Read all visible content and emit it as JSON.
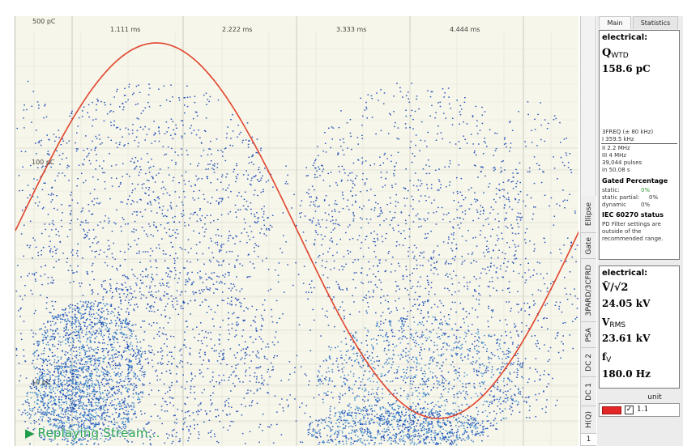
{
  "plot": {
    "scale_top": "500 pC",
    "scale_mid": "100 pC",
    "scale_low": "10 pC",
    "time_ticks": [
      "1.111 ms",
      "2.222 ms",
      "3.333 ms",
      "4.444 ms"
    ],
    "sine_color": "#e0442c",
    "dot_color": "#2451b8",
    "dot_dense_color": "#3f8fd0",
    "replay_text": "Replaying Stream...",
    "replay_icon": "play-triangle-icon"
  },
  "side_tabs": [
    "Ellipse",
    "Gate",
    "3PARD/3CFRD",
    "PSA",
    "DC 2",
    "DC 1",
    "H(Q)",
    "1"
  ],
  "top_tabs": {
    "main": "Main",
    "statistics": "Statistics"
  },
  "electrical1": {
    "header": "electrical:",
    "q_symbol": "Q",
    "q_sub": "WTD",
    "q_value": "158.6 pC",
    "freq_header": "3FREQ (± 80 kHz)",
    "freq_1": "I   359.5 kHz",
    "freq_2": "II  2.2 MHz",
    "freq_3": "III 4 MHz",
    "pulses": "39,044 pulses",
    "duration": "in 50.08 s",
    "gated_header": "Gated Percentage",
    "gated": [
      {
        "label": "static:",
        "value": "0%"
      },
      {
        "label": "static partial:",
        "value": "0%"
      },
      {
        "label": "dynamic",
        "value": "0%"
      }
    ],
    "iec_header": "IEC 60270 status",
    "iec_lines": [
      "PD Filter settings are",
      "outside of the",
      "recommended range."
    ]
  },
  "electrical2": {
    "header": "electrical:",
    "v_symbol": "V̂/√2",
    "v_value": "24.05 kV",
    "rms_symbol": "V",
    "rms_sub": "RMS",
    "rms_value": "23.61 kV",
    "f_symbol": "f",
    "f_sub": "V",
    "f_value": "180.0 Hz"
  },
  "unit": {
    "label": "unit",
    "color": "#e32626",
    "checked_mark": "✓",
    "value": "1.1"
  }
}
